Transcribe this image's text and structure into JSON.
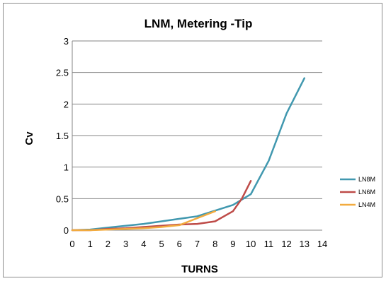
{
  "chart_data": {
    "type": "line",
    "title": "LNM, Metering -Tip",
    "xlabel": "TURNS",
    "ylabel": "Cv",
    "xlim": [
      0,
      14
    ],
    "ylim": [
      0,
      3
    ],
    "x_ticks": [
      "0",
      "1",
      "2",
      "3",
      "4",
      "5",
      "6",
      "7",
      "8",
      "9",
      "10",
      "11",
      "12",
      "13",
      "14"
    ],
    "y_ticks": [
      "0",
      "0.5",
      "1",
      "1.5",
      "2",
      "2.5",
      "3"
    ],
    "grid": "horizontal",
    "legend_position": "right",
    "series": [
      {
        "name": "LN8M",
        "color": "#4198AF",
        "x": [
          0,
          1,
          2,
          3,
          4,
          5,
          6,
          7,
          8,
          9,
          10,
          11,
          12,
          13
        ],
        "y": [
          0,
          0.01,
          0.04,
          0.07,
          0.1,
          0.14,
          0.18,
          0.22,
          0.31,
          0.4,
          0.57,
          1.1,
          1.85,
          2.41
        ]
      },
      {
        "name": "LN6M",
        "color": "#BE4B48",
        "x": [
          0,
          1,
          2,
          3,
          4,
          5,
          6,
          7,
          8,
          9,
          9.5,
          10
        ],
        "y": [
          0,
          0,
          0.02,
          0.03,
          0.05,
          0.07,
          0.09,
          0.1,
          0.14,
          0.3,
          0.5,
          0.78
        ]
      },
      {
        "name": "LN4M",
        "color": "#F2AB3F",
        "x": [
          0,
          1,
          2,
          3,
          4,
          5,
          6,
          7,
          8
        ],
        "y": [
          0,
          0,
          0.01,
          0.02,
          0.03,
          0.05,
          0.08,
          0.19,
          0.3
        ]
      }
    ]
  }
}
